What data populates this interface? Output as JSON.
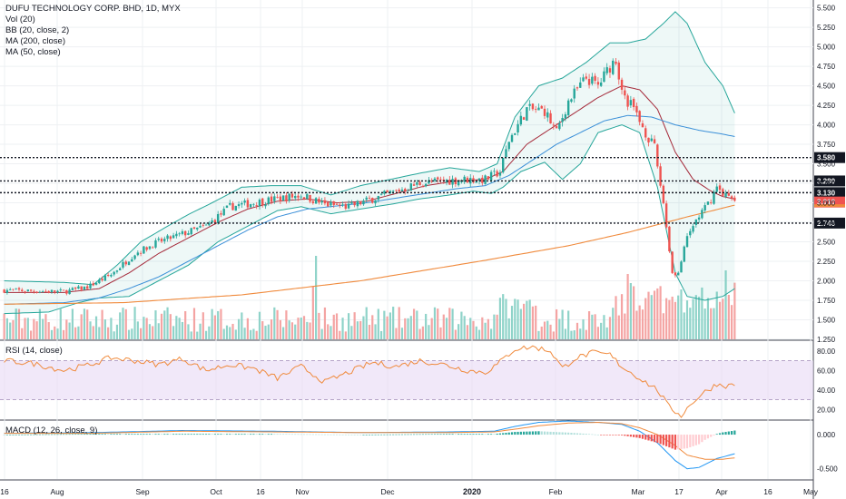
{
  "legend": {
    "title": "DUFU TECHNOLOGY CORP. BHD, 1D, MYX",
    "vol": "Vol (20)",
    "bb": "BB (20, close, 2)",
    "ma200": "MA (200, close)",
    "ma50": "MA (50, close)",
    "rsi": "RSI (14, close)",
    "macd": "MACD (12, 26, close, 9)"
  },
  "colors": {
    "up": "#26a69a",
    "down": "#ef5350",
    "up_vol": "#8fd3c9",
    "down_vol": "#f4a4a3",
    "bb_band": "#26a69a",
    "bb_basis": "#a52a3a",
    "ma200": "#f08a3c",
    "ma50": "#3a8fd8",
    "rsi_line": "#f08a3c",
    "rsi_band": "#e8d8f5",
    "macd_line": "#2196f3",
    "signal_line": "#f08a3c"
  },
  "chart_data": [
    {
      "type": "candlestick",
      "title": "DUFU TECHNOLOGY CORP. BHD, 1D, MYX",
      "ylim": [
        1.25,
        5.6
      ],
      "y_ticks": [
        "5.500",
        "5.250",
        "5.000",
        "4.750",
        "4.500",
        "4.250",
        "4.000",
        "3.750",
        "3.500",
        "3.250",
        "3.000",
        "2.750",
        "2.500",
        "2.250",
        "2.000",
        "1.750",
        "1.500",
        "1.250"
      ],
      "x_ticks": [
        "16",
        "Aug",
        "Sep",
        "Oct",
        "16",
        "Nov",
        "Dec",
        "2020",
        "Feb",
        "Mar",
        "17",
        "Apr",
        "16",
        "May"
      ],
      "price_levels": [
        {
          "value": 3.58,
          "label": "3.580"
        },
        {
          "value": 3.28,
          "label": "3.280"
        },
        {
          "value": 3.13,
          "label": "3.130"
        },
        {
          "value": 2.74,
          "label": "2.740"
        }
      ],
      "last_price": {
        "value": 3.01,
        "label": "3.010"
      },
      "ma200_last": {
        "value": 2.97
      },
      "anchors_close": [
        [
          0,
          1.88
        ],
        [
          20,
          1.86
        ],
        [
          28,
          1.92
        ],
        [
          36,
          2.08
        ],
        [
          44,
          2.35
        ],
        [
          52,
          2.5
        ],
        [
          60,
          2.6
        ],
        [
          68,
          2.7
        ],
        [
          76,
          2.95
        ],
        [
          84,
          3.0
        ],
        [
          92,
          3.05
        ],
        [
          100,
          3.1
        ],
        [
          108,
          2.98
        ],
        [
          116,
          2.95
        ],
        [
          124,
          3.05
        ],
        [
          132,
          3.15
        ],
        [
          140,
          3.25
        ],
        [
          148,
          3.28
        ],
        [
          156,
          3.3
        ],
        [
          162,
          3.3
        ],
        [
          167,
          3.4
        ],
        [
          170,
          3.8
        ],
        [
          176,
          4.2
        ],
        [
          182,
          4.18
        ],
        [
          186,
          3.9
        ],
        [
          190,
          4.3
        ],
        [
          196,
          4.6
        ],
        [
          200,
          4.5
        ],
        [
          204,
          4.75
        ],
        [
          206,
          4.85
        ],
        [
          208,
          4.4
        ],
        [
          212,
          4.2
        ],
        [
          216,
          3.9
        ],
        [
          219,
          3.7
        ],
        [
          222,
          3.0
        ],
        [
          225,
          2.1
        ],
        [
          227,
          2.1
        ],
        [
          230,
          2.55
        ],
        [
          233,
          2.78
        ],
        [
          237,
          2.98
        ],
        [
          240,
          3.2
        ],
        [
          243,
          3.1
        ],
        [
          246,
          3.01
        ]
      ],
      "bb_upper": [
        [
          0,
          2.0
        ],
        [
          20,
          1.98
        ],
        [
          30,
          1.95
        ],
        [
          38,
          2.2
        ],
        [
          46,
          2.5
        ],
        [
          55,
          2.7
        ],
        [
          62,
          2.85
        ],
        [
          70,
          3.0
        ],
        [
          80,
          3.2
        ],
        [
          90,
          3.22
        ],
        [
          100,
          3.22
        ],
        [
          110,
          3.1
        ],
        [
          120,
          3.22
        ],
        [
          130,
          3.3
        ],
        [
          140,
          3.38
        ],
        [
          150,
          3.45
        ],
        [
          160,
          3.4
        ],
        [
          166,
          3.5
        ],
        [
          172,
          4.1
        ],
        [
          180,
          4.5
        ],
        [
          188,
          4.6
        ],
        [
          196,
          4.8
        ],
        [
          204,
          5.05
        ],
        [
          210,
          5.05
        ],
        [
          216,
          5.1
        ],
        [
          222,
          5.3
        ],
        [
          226,
          5.45
        ],
        [
          230,
          5.3
        ],
        [
          236,
          4.8
        ],
        [
          242,
          4.5
        ],
        [
          246,
          4.15
        ]
      ],
      "bb_basis": [
        [
          0,
          1.85
        ],
        [
          20,
          1.85
        ],
        [
          32,
          1.9
        ],
        [
          42,
          2.1
        ],
        [
          52,
          2.35
        ],
        [
          62,
          2.55
        ],
        [
          72,
          2.75
        ],
        [
          82,
          2.92
        ],
        [
          92,
          3.02
        ],
        [
          102,
          3.05
        ],
        [
          112,
          3.0
        ],
        [
          122,
          3.02
        ],
        [
          132,
          3.12
        ],
        [
          142,
          3.22
        ],
        [
          152,
          3.28
        ],
        [
          162,
          3.3
        ],
        [
          168,
          3.4
        ],
        [
          176,
          3.75
        ],
        [
          184,
          3.95
        ],
        [
          192,
          4.15
        ],
        [
          200,
          4.35
        ],
        [
          208,
          4.5
        ],
        [
          214,
          4.45
        ],
        [
          220,
          4.2
        ],
        [
          226,
          3.65
        ],
        [
          232,
          3.3
        ],
        [
          238,
          3.15
        ],
        [
          242,
          3.08
        ],
        [
          246,
          3.05
        ]
      ],
      "bb_lower": [
        [
          0,
          1.58
        ],
        [
          15,
          1.6
        ],
        [
          25,
          1.72
        ],
        [
          32,
          1.78
        ],
        [
          42,
          1.8
        ],
        [
          52,
          2.0
        ],
        [
          62,
          2.2
        ],
        [
          72,
          2.5
        ],
        [
          82,
          2.7
        ],
        [
          92,
          2.9
        ],
        [
          100,
          2.95
        ],
        [
          110,
          2.86
        ],
        [
          120,
          2.92
        ],
        [
          130,
          2.98
        ],
        [
          140,
          3.05
        ],
        [
          150,
          3.1
        ],
        [
          158,
          3.15
        ],
        [
          164,
          3.12
        ],
        [
          168,
          3.2
        ],
        [
          174,
          3.4
        ],
        [
          182,
          3.52
        ],
        [
          188,
          3.3
        ],
        [
          194,
          3.5
        ],
        [
          200,
          3.9
        ],
        [
          208,
          4.0
        ],
        [
          214,
          3.9
        ],
        [
          220,
          3.2
        ],
        [
          226,
          2.1
        ],
        [
          230,
          1.8
        ],
        [
          236,
          1.75
        ],
        [
          242,
          1.8
        ],
        [
          246,
          1.9
        ]
      ],
      "ma50": [
        [
          0,
          1.7
        ],
        [
          20,
          1.72
        ],
        [
          32,
          1.78
        ],
        [
          42,
          1.9
        ],
        [
          52,
          2.05
        ],
        [
          62,
          2.25
        ],
        [
          72,
          2.45
        ],
        [
          82,
          2.65
        ],
        [
          92,
          2.82
        ],
        [
          102,
          2.92
        ],
        [
          112,
          2.96
        ],
        [
          122,
          3.0
        ],
        [
          132,
          3.06
        ],
        [
          142,
          3.12
        ],
        [
          152,
          3.18
        ],
        [
          162,
          3.22
        ],
        [
          170,
          3.35
        ],
        [
          178,
          3.55
        ],
        [
          186,
          3.75
        ],
        [
          194,
          3.9
        ],
        [
          202,
          4.05
        ],
        [
          210,
          4.12
        ],
        [
          218,
          4.1
        ],
        [
          226,
          4.0
        ],
        [
          234,
          3.93
        ],
        [
          242,
          3.88
        ],
        [
          246,
          3.85
        ]
      ],
      "ma200": [
        [
          0,
          1.7
        ],
        [
          40,
          1.72
        ],
        [
          80,
          1.82
        ],
        [
          120,
          2.0
        ],
        [
          160,
          2.25
        ],
        [
          190,
          2.45
        ],
        [
          210,
          2.62
        ],
        [
          230,
          2.82
        ],
        [
          246,
          2.97
        ]
      ],
      "series_visible": [
        "price",
        "volume",
        "bb_upper",
        "bb_basis",
        "bb_lower",
        "ma50",
        "ma200"
      ]
    },
    {
      "type": "line",
      "title": "RSI (14, close)",
      "ylim": [
        10,
        90
      ],
      "y_ticks": [
        "80.00",
        "60.00",
        "40.00",
        "20.00"
      ],
      "band": [
        30,
        70
      ],
      "anchors": [
        [
          0,
          70
        ],
        [
          10,
          67
        ],
        [
          20,
          60
        ],
        [
          28,
          65
        ],
        [
          36,
          73
        ],
        [
          44,
          70
        ],
        [
          52,
          66
        ],
        [
          60,
          72
        ],
        [
          68,
          60
        ],
        [
          76,
          66
        ],
        [
          84,
          62
        ],
        [
          92,
          52
        ],
        [
          100,
          64
        ],
        [
          108,
          48
        ],
        [
          116,
          58
        ],
        [
          124,
          68
        ],
        [
          132,
          64
        ],
        [
          140,
          70
        ],
        [
          148,
          66
        ],
        [
          156,
          60
        ],
        [
          162,
          58
        ],
        [
          166,
          66
        ],
        [
          172,
          82
        ],
        [
          178,
          84
        ],
        [
          184,
          80
        ],
        [
          188,
          62
        ],
        [
          192,
          72
        ],
        [
          198,
          78
        ],
        [
          204,
          76
        ],
        [
          208,
          64
        ],
        [
          212,
          56
        ],
        [
          216,
          48
        ],
        [
          220,
          40
        ],
        [
          224,
          22
        ],
        [
          228,
          14
        ],
        [
          232,
          28
        ],
        [
          236,
          38
        ],
        [
          240,
          46
        ],
        [
          244,
          44
        ],
        [
          246,
          46
        ]
      ]
    },
    {
      "type": "line",
      "title": "MACD (12, 26, close, 9)",
      "ylim": [
        -0.65,
        0.2
      ],
      "y_ticks": [
        "0.000",
        "-0.500"
      ],
      "macd": [
        [
          0,
          0.02
        ],
        [
          30,
          0.03
        ],
        [
          60,
          0.06
        ],
        [
          90,
          0.05
        ],
        [
          120,
          0.03
        ],
        [
          150,
          0.04
        ],
        [
          165,
          0.05
        ],
        [
          172,
          0.12
        ],
        [
          180,
          0.18
        ],
        [
          190,
          0.2
        ],
        [
          200,
          0.18
        ],
        [
          208,
          0.15
        ],
        [
          214,
          0.05
        ],
        [
          220,
          -0.12
        ],
        [
          226,
          -0.38
        ],
        [
          230,
          -0.5
        ],
        [
          234,
          -0.48
        ],
        [
          240,
          -0.35
        ],
        [
          246,
          -0.28
        ]
      ],
      "signal": [
        [
          0,
          0.02
        ],
        [
          30,
          0.02
        ],
        [
          60,
          0.05
        ],
        [
          90,
          0.04
        ],
        [
          120,
          0.03
        ],
        [
          150,
          0.03
        ],
        [
          165,
          0.04
        ],
        [
          172,
          0.08
        ],
        [
          180,
          0.13
        ],
        [
          190,
          0.17
        ],
        [
          200,
          0.18
        ],
        [
          208,
          0.16
        ],
        [
          214,
          0.1
        ],
        [
          220,
          0.0
        ],
        [
          226,
          -0.16
        ],
        [
          230,
          -0.3
        ],
        [
          236,
          -0.36
        ],
        [
          242,
          -0.36
        ],
        [
          246,
          -0.34
        ]
      ]
    }
  ]
}
